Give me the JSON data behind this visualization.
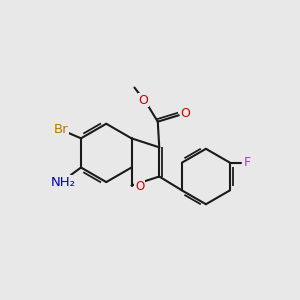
{
  "background_color": "#e8e8e8",
  "bond_color": "#1a1a1a",
  "atom_colors": {
    "Br": "#bb7700",
    "N": "#0000bb",
    "O": "#cc0000",
    "F": "#bb33bb",
    "C": "#1a1a1a"
  },
  "figsize": [
    3.0,
    3.0
  ],
  "dpi": 100,
  "bond_lw": 1.5
}
